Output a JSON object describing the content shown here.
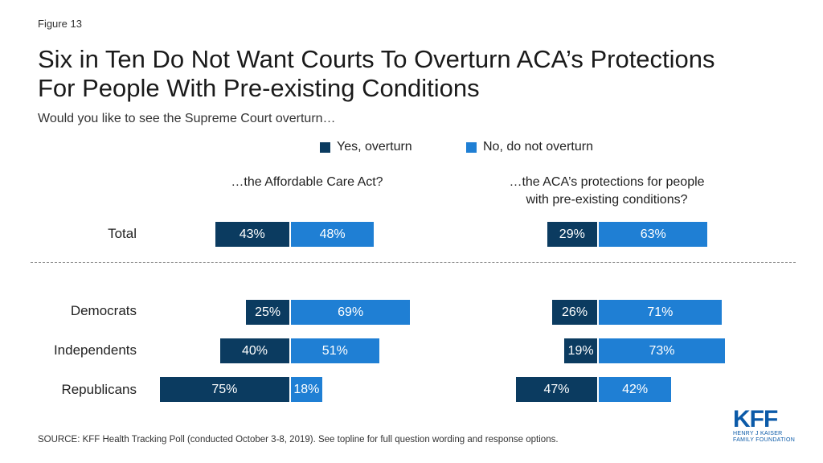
{
  "figure_label": "Figure 13",
  "title_line1": "Six in Ten Do Not Want Courts To Overturn ACA’s Protections",
  "title_line2": "For People With Pre-existing  Conditions",
  "subtitle": "Would you like to see the Supreme Court overturn…",
  "colors": {
    "yes": "#0b3b60",
    "no": "#1f7fd4"
  },
  "chart_data": {
    "type": "bar",
    "legend": [
      "Yes, overturn",
      "No, do not overturn"
    ],
    "panels": [
      {
        "title": "…the Affordable Care Act?",
        "categories": [
          "Total",
          "Democrats",
          "Independents",
          "Republicans"
        ],
        "series": [
          {
            "name": "Yes, overturn",
            "values": [
              43,
              25,
              40,
              75
            ]
          },
          {
            "name": "No, do not overturn",
            "values": [
              48,
              69,
              51,
              18
            ]
          }
        ]
      },
      {
        "title_line1": "…the ACA’s  protections for people",
        "title_line2": "with pre-existing conditions?",
        "categories": [
          "Total",
          "Democrats",
          "Independents",
          "Republicans"
        ],
        "series": [
          {
            "name": "Yes, overturn",
            "values": [
              29,
              26,
              19,
              47
            ]
          },
          {
            "name": "No, do not overturn",
            "values": [
              63,
              71,
              73,
              42
            ]
          }
        ]
      }
    ]
  },
  "source": "SOURCE: KFF Health Tracking Poll (conducted  October 3-8, 2019). See topline for full question wording and response options.",
  "logo": {
    "main": "KFF",
    "line1": "HENRY J KAISER",
    "line2": "FAMILY FOUNDATION"
  }
}
